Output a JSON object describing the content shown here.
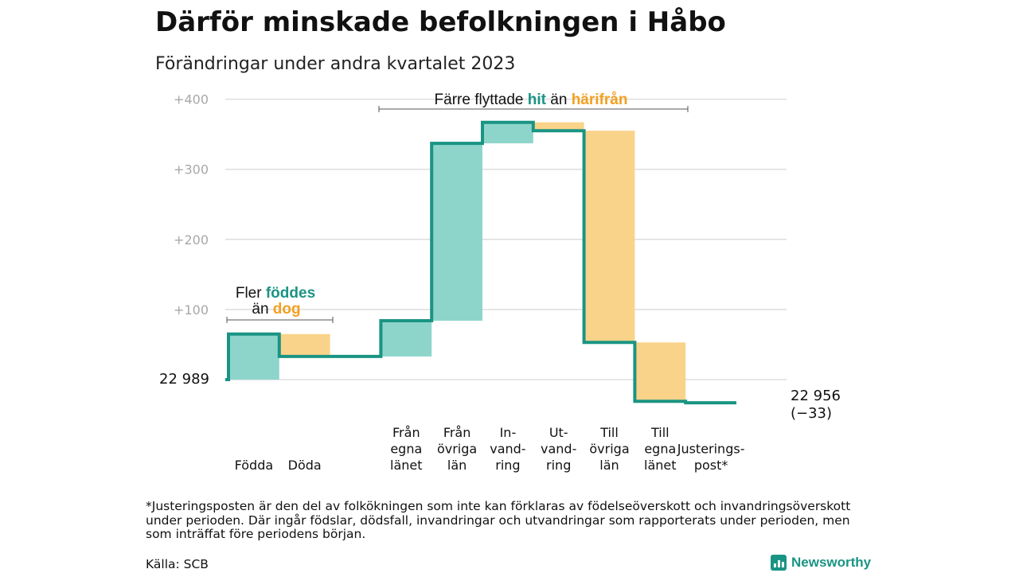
{
  "title": "Därför minskade befolkningen i Håbo",
  "subtitle": "Förändringar under andra kvartalet 2023",
  "chart_data": {
    "type": "waterfall",
    "start_value": 22989,
    "start_label": "22  989",
    "end_label_1": "22 956",
    "end_label_2": "(−33)",
    "yticks": [
      "+100",
      "+200",
      "+300",
      "+400"
    ],
    "ylim": [
      -35,
      400
    ],
    "steps": [
      {
        "label_lines": [
          "Födda"
        ],
        "change": 65,
        "kind": "in"
      },
      {
        "label_lines": [
          "Döda"
        ],
        "change": -32,
        "kind": "out"
      },
      {
        "label_lines": [
          ""
        ],
        "change": 0,
        "kind": "gap"
      },
      {
        "label_lines": [
          "Från",
          "egna",
          "länet"
        ],
        "change": 51,
        "kind": "in"
      },
      {
        "label_lines": [
          "Från",
          "övriga",
          "län"
        ],
        "change": 253,
        "kind": "in"
      },
      {
        "label_lines": [
          "In-",
          "vand-",
          "ring"
        ],
        "change": 30,
        "kind": "in"
      },
      {
        "label_lines": [
          "Ut-",
          "vand-",
          "ring"
        ],
        "change": -12,
        "kind": "out"
      },
      {
        "label_lines": [
          "Till",
          "övriga",
          "län"
        ],
        "change": -302,
        "kind": "out"
      },
      {
        "label_lines": [
          "Till",
          "egna",
          "länet"
        ],
        "change": -84,
        "kind": "out"
      },
      {
        "label_lines": [
          "Justerings-",
          "post*"
        ],
        "change": -2,
        "kind": "adjust"
      }
    ],
    "colors": {
      "in": "#8dd5cb",
      "out": "#fad38a",
      "line": "#1a9483",
      "grid": "#dddddd"
    }
  },
  "annotations": {
    "births": {
      "line1_a": "Fler ",
      "line1_b": "föddes",
      "line2_a": "än ",
      "line2_b": "dog"
    },
    "migration": {
      "a": "Färre flyttade ",
      "b": "hit",
      "c": " än ",
      "d": "härifrån"
    }
  },
  "footnote": "*Justeringsposten är den del av folkökningen som inte kan förklaras av födelseöverskott och invandringsöverskott under perioden. Där ingår födslar, dödsfall, invandringar och utvandringar som rapporterats under perioden, men som inträffat före periodens början.",
  "source": "Källa: SCB",
  "brand": "Newsworthy"
}
